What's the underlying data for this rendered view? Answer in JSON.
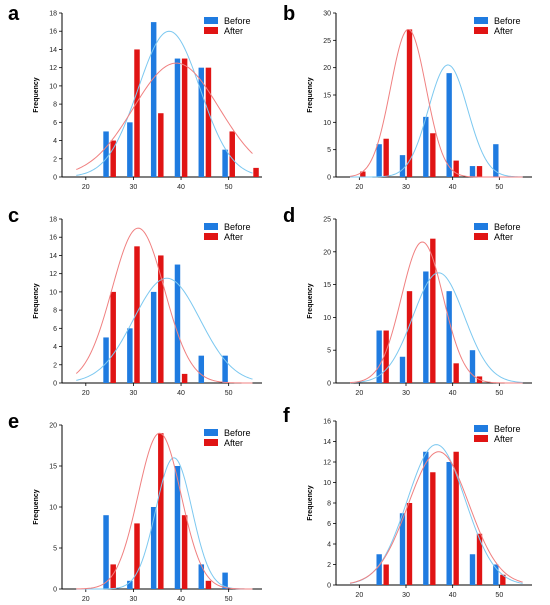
{
  "colors": {
    "before": "#1f7be0",
    "after": "#e01414",
    "before_curve": "#7cc8f0",
    "after_curve": "#f08080",
    "axis": "#000000"
  },
  "chart_data": [
    {
      "panel": "a",
      "type": "bar",
      "ylabel": "Frequency",
      "xlabel": "",
      "xlim": [
        15,
        57
      ],
      "ylim": [
        0,
        18
      ],
      "xticks": [
        20,
        30,
        40,
        50
      ],
      "yticks": [
        0,
        2,
        4,
        6,
        8,
        10,
        12,
        14,
        16,
        18
      ],
      "legend": [
        "Before",
        "After"
      ],
      "legend_position": "top-right",
      "x": [
        25,
        30,
        35,
        40,
        45,
        50,
        55
      ],
      "series": [
        {
          "name": "Before",
          "values": [
            5,
            6,
            17,
            13,
            12,
            3,
            0
          ],
          "fit": {
            "mean": 37.5,
            "sd": 6.5,
            "peak": 16
          }
        },
        {
          "name": "After",
          "values": [
            4,
            14,
            7,
            13,
            12,
            5,
            1
          ],
          "fit": {
            "mean": 39,
            "sd": 9,
            "peak": 12.5
          }
        }
      ]
    },
    {
      "panel": "b",
      "type": "bar",
      "ylabel": "Frequency",
      "xlabel": "",
      "xlim": [
        15,
        57
      ],
      "ylim": [
        0,
        30
      ],
      "xticks": [
        20,
        30,
        40,
        50
      ],
      "yticks": [
        0,
        5,
        10,
        15,
        20,
        25,
        30
      ],
      "legend": [
        "Before",
        "After"
      ],
      "legend_position": "top-right",
      "x": [
        20,
        25,
        30,
        35,
        40,
        45,
        50
      ],
      "series": [
        {
          "name": "Before",
          "values": [
            0,
            6,
            4,
            11,
            19,
            2,
            6
          ],
          "fit": {
            "mean": 39,
            "sd": 4.2,
            "peak": 20.5
          }
        },
        {
          "name": "After",
          "values": [
            1,
            7,
            27,
            8,
            3,
            2,
            0
          ],
          "fit": {
            "mean": 30.5,
            "sd": 3.8,
            "peak": 27
          }
        }
      ]
    },
    {
      "panel": "c",
      "type": "bar",
      "ylabel": "Frequency",
      "xlabel": "",
      "xlim": [
        15,
        57
      ],
      "ylim": [
        0,
        18
      ],
      "xticks": [
        20,
        30,
        40,
        50
      ],
      "yticks": [
        0,
        2,
        4,
        6,
        8,
        10,
        12,
        14,
        16,
        18
      ],
      "legend": [
        "Before",
        "After"
      ],
      "legend_position": "top-right",
      "x": [
        25,
        30,
        35,
        40,
        45,
        50
      ],
      "series": [
        {
          "name": "Before",
          "values": [
            5,
            6,
            10,
            13,
            3,
            3
          ],
          "fit": {
            "mean": 37,
            "sd": 7,
            "peak": 11.5
          }
        },
        {
          "name": "After",
          "values": [
            10,
            15,
            14,
            1,
            0,
            0
          ],
          "fit": {
            "mean": 31,
            "sd": 5.5,
            "peak": 17
          }
        }
      ]
    },
    {
      "panel": "d",
      "type": "bar",
      "ylabel": "Frequency",
      "xlabel": "",
      "xlim": [
        15,
        57
      ],
      "ylim": [
        0,
        25
      ],
      "xticks": [
        20,
        30,
        40,
        50
      ],
      "yticks": [
        0,
        5,
        10,
        15,
        20,
        25
      ],
      "legend": [
        "Before",
        "After"
      ],
      "legend_position": "top-right",
      "x": [
        25,
        30,
        35,
        40,
        45
      ],
      "series": [
        {
          "name": "Before",
          "values": [
            8,
            4,
            17,
            14,
            5
          ],
          "fit": {
            "mean": 37,
            "sd": 5.5,
            "peak": 16.8
          }
        },
        {
          "name": "After",
          "values": [
            8,
            14,
            22,
            3,
            1
          ],
          "fit": {
            "mean": 33.5,
            "sd": 4.5,
            "peak": 21.5
          }
        }
      ]
    },
    {
      "panel": "e",
      "type": "bar",
      "ylabel": "Frequency",
      "xlabel": "",
      "xlim": [
        15,
        57
      ],
      "ylim": [
        0,
        20
      ],
      "xticks": [
        20,
        30,
        40,
        50
      ],
      "yticks": [
        0,
        5,
        10,
        15,
        20
      ],
      "legend": [
        "Before",
        "After"
      ],
      "legend_position": "top-right",
      "x": [
        25,
        30,
        35,
        40,
        45,
        50
      ],
      "series": [
        {
          "name": "Before",
          "values": [
            9,
            1,
            10,
            15,
            3,
            2
          ],
          "fit": {
            "mean": 38.5,
            "sd": 3.8,
            "peak": 16
          }
        },
        {
          "name": "After",
          "values": [
            3,
            8,
            19,
            9,
            1,
            0
          ],
          "fit": {
            "mean": 35.5,
            "sd": 4.5,
            "peak": 19
          }
        }
      ]
    },
    {
      "panel": "f",
      "type": "bar",
      "ylabel": "Frequency",
      "xlabel": "",
      "xlim": [
        15,
        57
      ],
      "ylim": [
        0,
        16
      ],
      "xticks": [
        20,
        30,
        40,
        50
      ],
      "yticks": [
        0,
        2,
        4,
        6,
        8,
        10,
        12,
        14,
        16
      ],
      "legend": [
        "Before",
        "After"
      ],
      "legend_position": "top-right",
      "x": [
        25,
        30,
        35,
        40,
        45,
        50
      ],
      "series": [
        {
          "name": "Before",
          "values": [
            3,
            7,
            13,
            12,
            3,
            2
          ],
          "fit": {
            "mean": 36.5,
            "sd": 6.2,
            "peak": 13.7
          }
        },
        {
          "name": "After",
          "values": [
            2,
            8,
            11,
            13,
            5,
            1
          ],
          "fit": {
            "mean": 37,
            "sd": 6.5,
            "peak": 13
          }
        }
      ]
    }
  ]
}
